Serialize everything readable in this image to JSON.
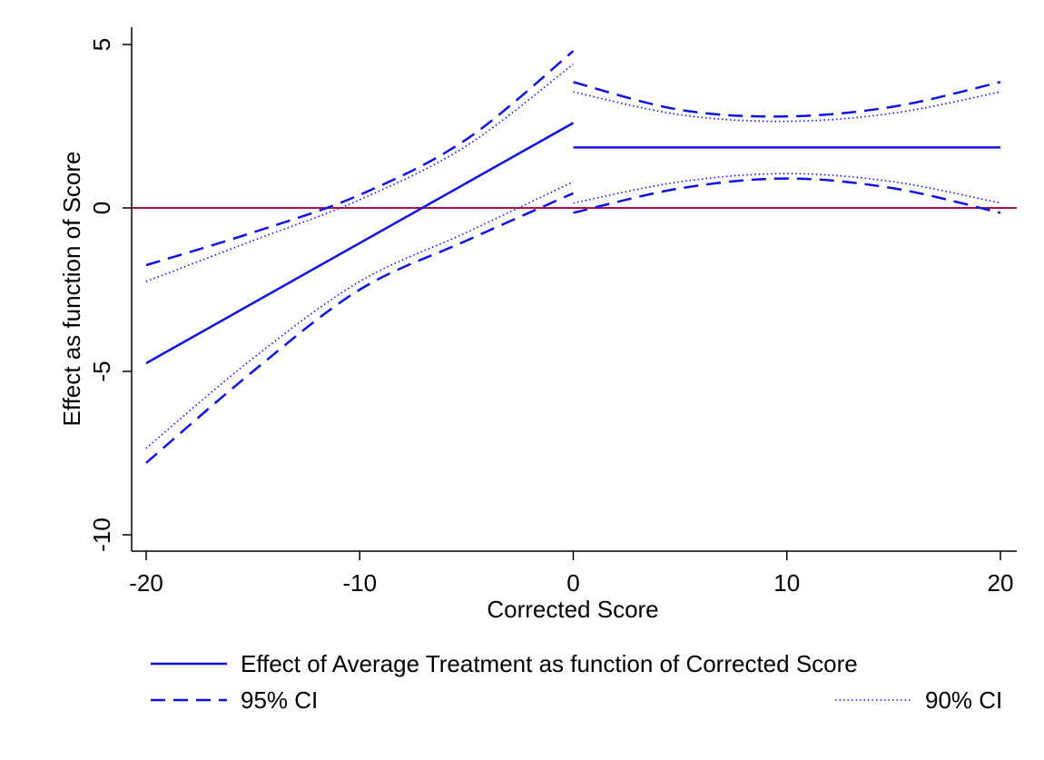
{
  "chart_data": {
    "type": "line",
    "xlabel": "Corrected Score",
    "ylabel": "Effect as function of Score",
    "xlim": [
      -20,
      20
    ],
    "ylim": [
      -10.5,
      5
    ],
    "xticks": [
      -20,
      -10,
      0,
      10,
      20
    ],
    "xtick_labels": [
      "-20",
      "-10",
      "0",
      "10",
      "20"
    ],
    "yticks": [
      -10,
      -5,
      0,
      5
    ],
    "ytick_labels": [
      "-10",
      "-5",
      "0",
      "5"
    ],
    "reference_line": {
      "y": 0,
      "color": "#b01040"
    },
    "grid": false,
    "legend_position": "bottom",
    "colors": {
      "series": "#1010e0"
    },
    "series": [
      {
        "name": "Effect of Average Treatment as function of Corrected Score",
        "style": "solid",
        "segments": [
          {
            "x": [
              -20,
              0
            ],
            "y": [
              -4.75,
              2.6
            ]
          },
          {
            "x": [
              0,
              20
            ],
            "y": [
              1.85,
              1.85
            ]
          }
        ]
      },
      {
        "name": "95% CI",
        "style": "dashed",
        "segments": [
          {
            "x": [
              -20,
              -15,
              -10,
              -5,
              0
            ],
            "y": [
              -1.75,
              -0.75,
              0.4,
              2.1,
              4.8
            ]
          },
          {
            "x": [
              0,
              5,
              10,
              15,
              20
            ],
            "y": [
              3.85,
              3.0,
              2.8,
              3.1,
              3.85
            ]
          },
          {
            "x": [
              -20,
              -15,
              -10,
              -5,
              0
            ],
            "y": [
              -7.8,
              -5.0,
              -2.5,
              -1.0,
              0.45
            ]
          },
          {
            "x": [
              0,
              5,
              10,
              15,
              20
            ],
            "y": [
              -0.15,
              0.6,
              0.9,
              0.6,
              -0.15
            ]
          }
        ]
      },
      {
        "name": "90% CI",
        "style": "dotted",
        "segments": [
          {
            "x": [
              -20,
              -15,
              -10,
              -5,
              0
            ],
            "y": [
              -2.25,
              -1.0,
              0.25,
              1.9,
              4.4
            ]
          },
          {
            "x": [
              0,
              5,
              10,
              15,
              20
            ],
            "y": [
              3.55,
              2.85,
              2.65,
              2.9,
              3.55
            ]
          },
          {
            "x": [
              -20,
              -15,
              -10,
              -5,
              0
            ],
            "y": [
              -7.35,
              -4.6,
              -2.25,
              -0.75,
              0.8
            ]
          },
          {
            "x": [
              0,
              5,
              10,
              15,
              20
            ],
            "y": [
              0.15,
              0.8,
              1.05,
              0.8,
              0.15
            ]
          }
        ]
      }
    ]
  }
}
